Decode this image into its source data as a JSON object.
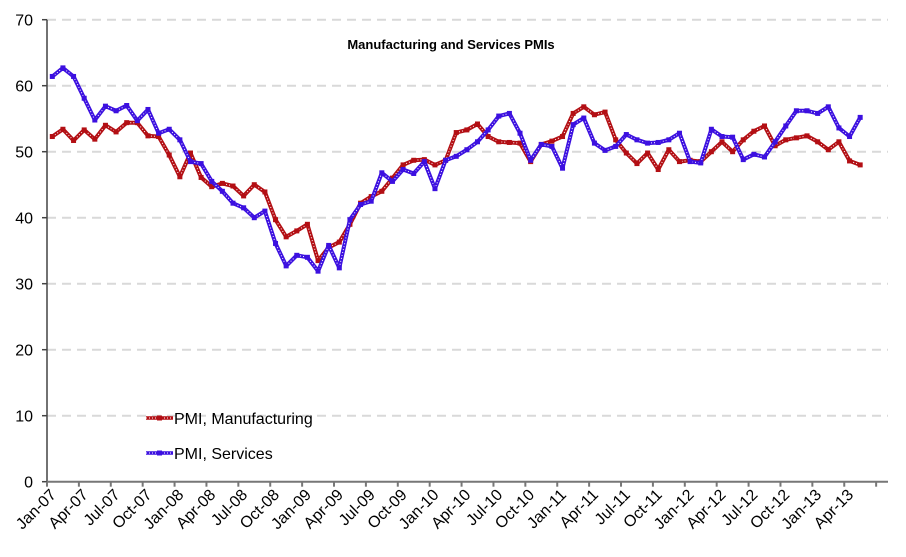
{
  "chart_data": {
    "type": "line",
    "title": "Manufacturing and Services PMIs",
    "xlabel": "",
    "ylabel": "",
    "ylim": [
      0,
      70
    ],
    "yticks": [
      0,
      10,
      20,
      30,
      40,
      50,
      60,
      70
    ],
    "grid": true,
    "legend_position": "bottom-left",
    "x_tick_labels": [
      "Jan-07",
      "Apr-07",
      "Jul-07",
      "Oct-07",
      "Jan-08",
      "Apr-08",
      "Jul-08",
      "Oct-08",
      "Jan-09",
      "Apr-09",
      "Jul-09",
      "Oct-09",
      "Jan-10",
      "Apr-10",
      "Jul-10",
      "Oct-10",
      "Jan-11",
      "Apr-11",
      "Jul-11",
      "Oct-11",
      "Jan-12",
      "Apr-12",
      "Jul-12",
      "Oct-12",
      "Jan-13",
      "Apr-13"
    ],
    "x_start": "Jan-07",
    "x_end": "May-13",
    "x_frequency": "monthly",
    "series": [
      {
        "name": "PMI, Manufacturing",
        "color": "#b30f14",
        "values": [
          52.3,
          53.4,
          51.7,
          53.3,
          51.9,
          54.0,
          53.0,
          54.4,
          54.4,
          52.4,
          52.3,
          49.5,
          46.2,
          49.8,
          46.1,
          44.7,
          45.2,
          44.8,
          43.3,
          45.0,
          43.9,
          39.7,
          37.1,
          38.0,
          39.0,
          33.5,
          35.5,
          36.3,
          39.0,
          42.2,
          43.2,
          44.0,
          46.0,
          48.0,
          48.7,
          48.8,
          48.0,
          48.7,
          52.9,
          53.3,
          54.2,
          52.3,
          51.5,
          51.4,
          51.3,
          48.5,
          51.1,
          51.6,
          52.3,
          55.8,
          56.8,
          55.6,
          56.0,
          51.8,
          49.8,
          48.2,
          49.8,
          47.3,
          50.3,
          48.5,
          48.7,
          48.5,
          50.0,
          51.5,
          50.0,
          51.8,
          53.1,
          53.9,
          50.9,
          51.8,
          52.1,
          52.4,
          51.5,
          50.3,
          51.5,
          48.6,
          48.0
        ]
      },
      {
        "name": "PMI, Services",
        "color": "#3c10e0",
        "values": [
          61.4,
          62.7,
          61.4,
          58.1,
          54.8,
          56.9,
          56.2,
          57.0,
          54.7,
          56.4,
          52.8,
          53.4,
          51.8,
          48.5,
          48.2,
          45.5,
          44.0,
          42.2,
          41.5,
          40.0,
          41.0,
          36.1,
          32.7,
          34.3,
          34.0,
          31.9,
          35.8,
          32.4,
          39.7,
          42.0,
          42.5,
          46.8,
          45.5,
          47.3,
          46.7,
          48.5,
          44.4,
          48.7,
          49.3,
          50.3,
          51.5,
          53.3,
          55.4,
          55.8,
          52.8,
          48.7,
          51.1,
          50.8,
          47.5,
          54.1,
          55.1,
          51.3,
          50.2,
          50.8,
          52.6,
          51.8,
          51.3,
          51.4,
          51.8,
          52.8,
          48.5,
          48.3,
          53.4,
          52.3,
          52.2,
          48.8,
          49.6,
          49.2,
          51.5,
          53.9,
          56.2,
          56.2,
          55.8,
          56.8,
          53.6,
          52.3,
          55.2
        ]
      }
    ]
  }
}
